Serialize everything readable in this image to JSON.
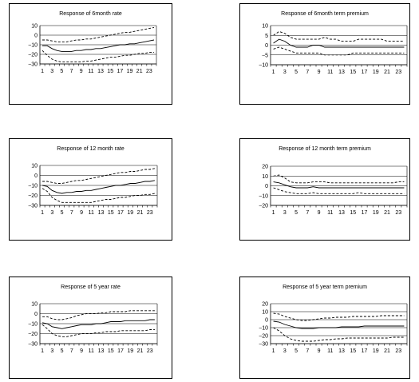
{
  "chart_data": [
    {
      "type": "line",
      "title": "Response of 6month rate",
      "x": [
        1,
        2,
        3,
        4,
        5,
        6,
        7,
        8,
        9,
        10,
        11,
        12,
        13,
        14,
        15,
        16,
        17,
        18,
        19,
        20,
        21,
        22,
        23,
        24
      ],
      "xticks": [
        "1",
        "3",
        "5",
        "7",
        "9",
        "11",
        "13",
        "15",
        "17",
        "19",
        "21",
        "23"
      ],
      "yticks": [
        10,
        0,
        -10,
        -20,
        -30
      ],
      "ylim": [
        -30,
        10
      ],
      "grid": true,
      "series": [
        {
          "style": "solid",
          "values": [
            -11,
            -11,
            -14,
            -16,
            -17,
            -17,
            -17,
            -16,
            -16,
            -15,
            -15,
            -14,
            -14,
            -13,
            -12,
            -11,
            -10,
            -10,
            -9,
            -9,
            -8,
            -7,
            -6,
            -5
          ]
        },
        {
          "style": "dashed",
          "values": [
            -5,
            -5,
            -6,
            -7,
            -7,
            -7,
            -6,
            -5,
            -5,
            -4,
            -4,
            -3,
            -2,
            -1,
            0,
            1,
            2,
            3,
            3,
            4,
            5,
            6,
            7,
            8
          ]
        },
        {
          "style": "dashed",
          "values": [
            -16,
            -21,
            -25,
            -27,
            -28,
            -28,
            -28,
            -28,
            -28,
            -27,
            -27,
            -26,
            -25,
            -24,
            -23,
            -23,
            -22,
            -21,
            -21,
            -20,
            -19,
            -19,
            -18,
            -18
          ]
        }
      ]
    },
    {
      "type": "line",
      "title": "Response of 6month term  premium",
      "x": [
        1,
        2,
        3,
        4,
        5,
        6,
        7,
        8,
        9,
        10,
        11,
        12,
        13,
        14,
        15,
        16,
        17,
        18,
        19,
        20,
        21,
        22,
        23,
        24
      ],
      "xticks": [
        "1",
        "3",
        "5",
        "7",
        "9",
        "11",
        "13",
        "15",
        "17",
        "19",
        "21",
        "23"
      ],
      "yticks": [
        10,
        5,
        0,
        -5,
        -10
      ],
      "ylim": [
        -10,
        10
      ],
      "grid": true,
      "series": [
        {
          "style": "solid",
          "values": [
            1,
            3,
            2,
            0,
            -1,
            -1,
            -1,
            0,
            0,
            -1,
            -1,
            -1,
            -1,
            -1,
            -1,
            -1,
            -1,
            -1,
            -1,
            -1,
            -1,
            -1,
            -1,
            -1
          ]
        },
        {
          "style": "dashed",
          "values": [
            5,
            7,
            6,
            4,
            3,
            3,
            3,
            3,
            3,
            4,
            3,
            3,
            2,
            2,
            2,
            3,
            3,
            3,
            3,
            3,
            2,
            2,
            2,
            2
          ]
        },
        {
          "style": "dashed",
          "values": [
            -2,
            -1,
            -2,
            -3,
            -4,
            -4,
            -4,
            -4,
            -4,
            -5,
            -5,
            -5,
            -5,
            -5,
            -4,
            -4,
            -4,
            -4,
            -4,
            -4,
            -4,
            -4,
            -4,
            -4
          ]
        }
      ]
    },
    {
      "type": "line",
      "title": "Response of 12 month rate",
      "x": [
        1,
        2,
        3,
        4,
        5,
        6,
        7,
        8,
        9,
        10,
        11,
        12,
        13,
        14,
        15,
        16,
        17,
        18,
        19,
        20,
        21,
        22,
        23,
        24
      ],
      "xticks": [
        "1",
        "3",
        "5",
        "7",
        "9",
        "11",
        "13",
        "15",
        "17",
        "19",
        "21",
        "23"
      ],
      "yticks": [
        10,
        0,
        -10,
        -20,
        -30
      ],
      "ylim": [
        -30,
        10
      ],
      "grid": true,
      "series": [
        {
          "style": "solid",
          "values": [
            -10,
            -11,
            -15,
            -17,
            -18,
            -17,
            -17,
            -16,
            -16,
            -15,
            -15,
            -14,
            -13,
            -12,
            -11,
            -10,
            -10,
            -9,
            -8,
            -8,
            -7,
            -6,
            -6,
            -5
          ]
        },
        {
          "style": "dashed",
          "values": [
            -6,
            -6,
            -7,
            -8,
            -8,
            -7,
            -6,
            -5,
            -5,
            -4,
            -3,
            -2,
            -1,
            0,
            1,
            2,
            3,
            3,
            4,
            4,
            5,
            6,
            6,
            7
          ]
        },
        {
          "style": "dashed",
          "values": [
            -13,
            -16,
            -22,
            -25,
            -27,
            -27,
            -27,
            -27,
            -27,
            -27,
            -27,
            -26,
            -25,
            -24,
            -24,
            -23,
            -22,
            -22,
            -21,
            -20,
            -20,
            -19,
            -19,
            -18
          ]
        }
      ]
    },
    {
      "type": "line",
      "title": "Response of  12 month term premium",
      "x": [
        1,
        2,
        3,
        4,
        5,
        6,
        7,
        8,
        9,
        10,
        11,
        12,
        13,
        14,
        15,
        16,
        17,
        18,
        19,
        20,
        21,
        22,
        23,
        24
      ],
      "xticks": [
        "1",
        "3",
        "5",
        "7",
        "9",
        "11",
        "13",
        "15",
        "17",
        "19",
        "21",
        "23"
      ],
      "yticks": [
        20,
        10,
        0,
        -10,
        -20
      ],
      "ylim": [
        -20,
        20
      ],
      "grid": true,
      "series": [
        {
          "style": "solid",
          "values": [
            4,
            3,
            1,
            -1,
            -2,
            -2,
            -2,
            -1,
            -2,
            -2,
            -2,
            -2,
            -2,
            -2,
            -2,
            -2,
            -2,
            -2,
            -2,
            -2,
            -2,
            -2,
            -2,
            -2
          ]
        },
        {
          "style": "dashed",
          "values": [
            10,
            11,
            8,
            4,
            3,
            3,
            3,
            4,
            4,
            4,
            3,
            3,
            3,
            3,
            3,
            3,
            3,
            3,
            3,
            3,
            3,
            3,
            4,
            4
          ]
        },
        {
          "style": "dashed",
          "values": [
            -2,
            -4,
            -6,
            -7,
            -8,
            -8,
            -8,
            -7,
            -8,
            -8,
            -8,
            -8,
            -8,
            -8,
            -8,
            -7,
            -8,
            -8,
            -8,
            -8,
            -8,
            -8,
            -8,
            -8
          ]
        }
      ]
    },
    {
      "type": "line",
      "title": "Response of 5 year rate",
      "x": [
        1,
        2,
        3,
        4,
        5,
        6,
        7,
        8,
        9,
        10,
        11,
        12,
        13,
        14,
        15,
        16,
        17,
        18,
        19,
        20,
        21,
        22,
        23,
        24
      ],
      "xticks": [
        "1",
        "3",
        "5",
        "7",
        "9",
        "11",
        "13",
        "15",
        "17",
        "19",
        "21",
        "23"
      ],
      "yticks": [
        10,
        0,
        -10,
        -20,
        -30
      ],
      "ylim": [
        -30,
        10
      ],
      "grid": true,
      "series": [
        {
          "style": "solid",
          "values": [
            -9,
            -10,
            -13,
            -14,
            -15,
            -14,
            -13,
            -12,
            -11,
            -11,
            -11,
            -10,
            -10,
            -9,
            -8,
            -8,
            -8,
            -7,
            -7,
            -7,
            -7,
            -7,
            -6,
            -6
          ]
        },
        {
          "style": "dashed",
          "values": [
            -3,
            -3,
            -5,
            -6,
            -6,
            -5,
            -4,
            -2,
            -1,
            0,
            0,
            0,
            1,
            1,
            2,
            2,
            2,
            2,
            3,
            3,
            3,
            3,
            3,
            3
          ]
        },
        {
          "style": "dashed",
          "values": [
            -11,
            -15,
            -20,
            -22,
            -23,
            -23,
            -22,
            -21,
            -20,
            -20,
            -20,
            -19,
            -19,
            -18,
            -18,
            -18,
            -17,
            -17,
            -17,
            -17,
            -17,
            -17,
            -16,
            -16
          ]
        }
      ]
    },
    {
      "type": "line",
      "title": "Response of 5 year term premium",
      "x": [
        1,
        2,
        3,
        4,
        5,
        6,
        7,
        8,
        9,
        10,
        11,
        12,
        13,
        14,
        15,
        16,
        17,
        18,
        19,
        20,
        21,
        22,
        23,
        24
      ],
      "xticks": [
        "1",
        "3",
        "5",
        "7",
        "9",
        "11",
        "13",
        "15",
        "17",
        "19",
        "21",
        "23"
      ],
      "yticks": [
        20,
        10,
        0,
        -10,
        -20,
        -30
      ],
      "ylim": [
        -30,
        20
      ],
      "grid": true,
      "series": [
        {
          "style": "solid",
          "values": [
            -2,
            -3,
            -6,
            -8,
            -10,
            -11,
            -11,
            -11,
            -10,
            -10,
            -10,
            -10,
            -9,
            -9,
            -9,
            -9,
            -8,
            -8,
            -8,
            -8,
            -8,
            -8,
            -8,
            -8
          ]
        },
        {
          "style": "dashed",
          "values": [
            8,
            7,
            4,
            2,
            0,
            -1,
            -1,
            0,
            1,
            2,
            2,
            3,
            3,
            3,
            4,
            4,
            4,
            4,
            4,
            5,
            5,
            5,
            5,
            5
          ]
        },
        {
          "style": "dashed",
          "values": [
            -10,
            -14,
            -20,
            -24,
            -26,
            -27,
            -27,
            -27,
            -26,
            -25,
            -25,
            -24,
            -24,
            -23,
            -23,
            -23,
            -23,
            -23,
            -23,
            -23,
            -23,
            -22,
            -22,
            -22
          ]
        }
      ]
    }
  ]
}
